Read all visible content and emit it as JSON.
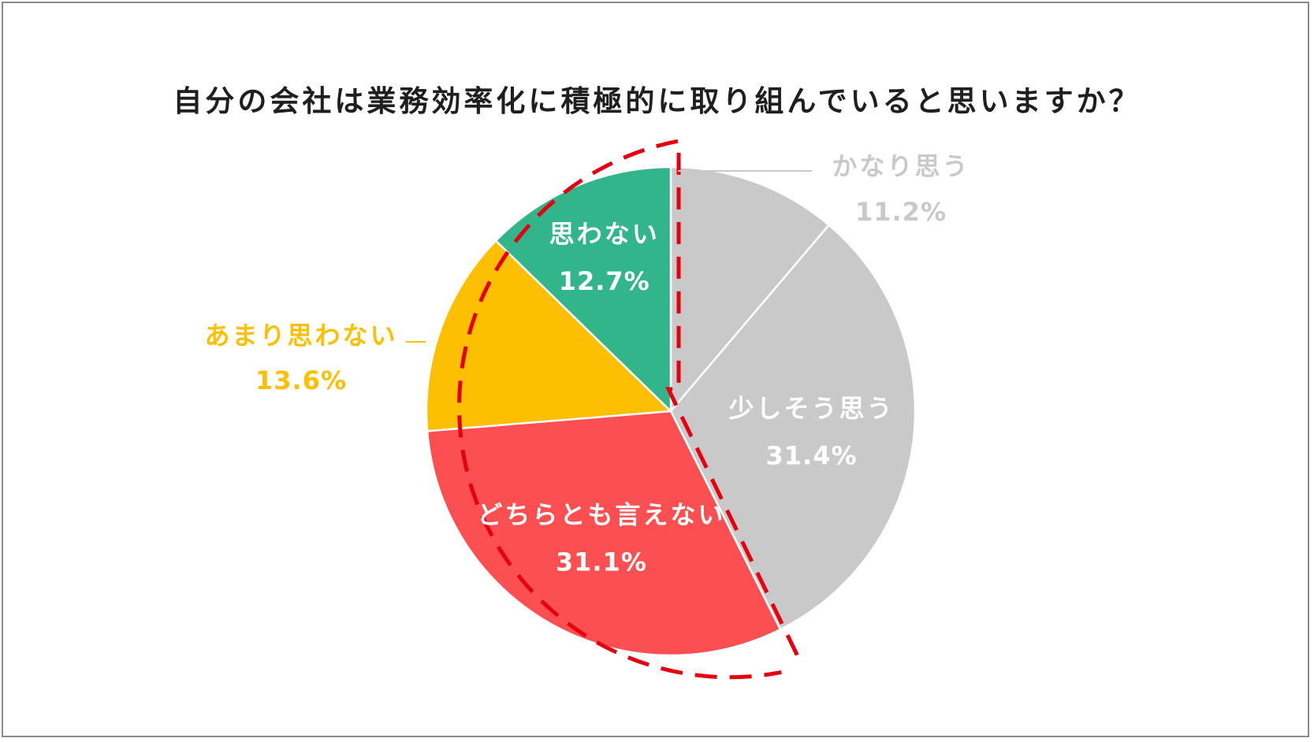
{
  "chart_data": {
    "type": "pie",
    "title": "自分の会社は業務効率化に積極的に取り組んでいると思いますか？",
    "start": "top",
    "direction": "clockwise",
    "slices": [
      {
        "label": "かなり思う",
        "value": 11.2,
        "value_label": "11.2%",
        "color": "#c9c9c9",
        "label_color": "#c9c9c9",
        "placement": "outside"
      },
      {
        "label": "少しそう思う",
        "value": 31.4,
        "value_label": "31.4%",
        "color": "#c9c9c9",
        "label_color": "#ffffff",
        "placement": "inside"
      },
      {
        "label": "どちらとも言えない",
        "value": 31.1,
        "value_label": "31.1%",
        "color": "#fb4f52",
        "label_color": "#ffffff",
        "placement": "inside"
      },
      {
        "label": "あまり思わない",
        "value": 13.6,
        "value_label": "13.6%",
        "color": "#fcbf01",
        "label_color": "#fcbf01",
        "placement": "outside"
      },
      {
        "label": "思わない",
        "value": 12.7,
        "value_label": "12.7%",
        "color": "#33b58c",
        "label_color": "#ffffff",
        "placement": "inside"
      }
    ],
    "highlight": {
      "style": "dashed-outline",
      "color": "#e5000f",
      "slices": [
        "どちらとも言えない",
        "あまり思わない",
        "思わない"
      ]
    }
  }
}
